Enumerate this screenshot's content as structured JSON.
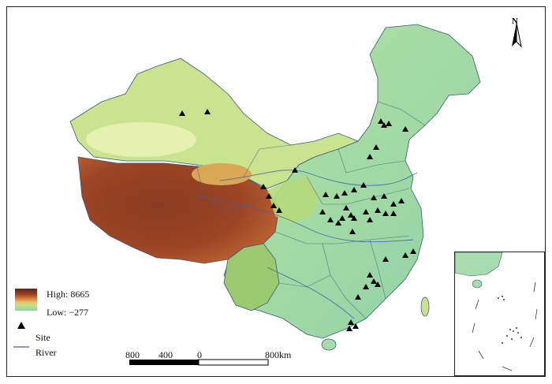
{
  "map": {
    "north_label": "N",
    "legend": {
      "high_label": "High: 8665",
      "low_label": "Low: −277",
      "site_label": "Site",
      "river_label": "River",
      "site_icon": "triangle-marker",
      "river_color": "#3f5fb0"
    },
    "scale_bar": {
      "labels": [
        "800",
        "400",
        "0",
        "800km"
      ]
    },
    "colors": {
      "lowland": "#8fd3a8",
      "plains": "#a7dcae",
      "hills": "#c9e38f",
      "plateau_mid": "#d98e4a",
      "plateau_high": "#8a3b1f",
      "border": "#4a5e7a"
    }
  }
}
